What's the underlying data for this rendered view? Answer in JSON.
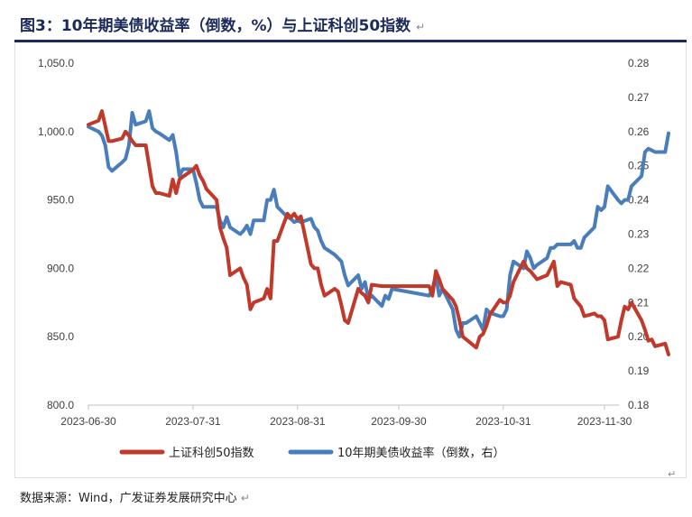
{
  "header": {
    "title": "图3：10年期美债收益率（倒数，%）与上证科创50指数",
    "return_mark": "↵"
  },
  "footer": {
    "source": "数据来源：Wind，广发证券发展研究中心",
    "return_mark": "↵"
  },
  "colors": {
    "red_series": "#c0392b",
    "blue_series": "#4a7ebb",
    "title": "#1b2a5a"
  },
  "chart_data": {
    "type": "line",
    "title": "图3：10年期美债收益率（倒数，%）与上证科创50指数",
    "grid": false,
    "legend_position": "bottom",
    "x_ticks": [
      "2023-06-30",
      "2023-07-31",
      "2023-08-31",
      "2023-09-30",
      "2023-10-31",
      "2023-11-30"
    ],
    "left_axis": {
      "ylim": [
        800,
        1050
      ],
      "ticks": [
        "800.0",
        "850.0",
        "900.0",
        "950.0",
        "1,000.0",
        "1,050.0"
      ]
    },
    "right_axis": {
      "ylim": [
        0.18,
        0.28
      ],
      "ticks": [
        "0.18",
        "0.19",
        "0.20",
        "0.21",
        "0.22",
        "0.23",
        "0.24",
        "0.25",
        "0.26",
        "0.27",
        "0.28"
      ]
    },
    "series": [
      {
        "name": "上证科创50指数",
        "axis": "left",
        "color": "#c0392b",
        "points": [
          [
            "2023-06-30",
            1005
          ],
          [
            "2023-07-03",
            1008
          ],
          [
            "2023-07-04",
            1015
          ],
          [
            "2023-07-05",
            1004
          ],
          [
            "2023-07-06",
            993
          ],
          [
            "2023-07-07",
            993
          ],
          [
            "2023-07-10",
            995
          ],
          [
            "2023-07-11",
            1000
          ],
          [
            "2023-07-12",
            997
          ],
          [
            "2023-07-13",
            993
          ],
          [
            "2023-07-14",
            990
          ],
          [
            "2023-07-17",
            990
          ],
          [
            "2023-07-18",
            975
          ],
          [
            "2023-07-19",
            960
          ],
          [
            "2023-07-20",
            955
          ],
          [
            "2023-07-21",
            955
          ],
          [
            "2023-07-24",
            953
          ],
          [
            "2023-07-25",
            965
          ],
          [
            "2023-07-26",
            955
          ],
          [
            "2023-07-27",
            965
          ],
          [
            "2023-07-28",
            967
          ],
          [
            "2023-07-31",
            972
          ],
          [
            "2023-08-01",
            975
          ],
          [
            "2023-08-02",
            968
          ],
          [
            "2023-08-03",
            964
          ],
          [
            "2023-08-04",
            958
          ],
          [
            "2023-08-07",
            950
          ],
          [
            "2023-08-08",
            930
          ],
          [
            "2023-08-09",
            922
          ],
          [
            "2023-08-10",
            915
          ],
          [
            "2023-08-11",
            895
          ],
          [
            "2023-08-14",
            900
          ],
          [
            "2023-08-15",
            893
          ],
          [
            "2023-08-16",
            888
          ],
          [
            "2023-08-17",
            870
          ],
          [
            "2023-08-18",
            875
          ],
          [
            "2023-08-21",
            878
          ],
          [
            "2023-08-22",
            885
          ],
          [
            "2023-08-23",
            878
          ],
          [
            "2023-08-24",
            920
          ],
          [
            "2023-08-25",
            920
          ],
          [
            "2023-08-28",
            940
          ],
          [
            "2023-08-29",
            937
          ],
          [
            "2023-08-30",
            940
          ],
          [
            "2023-08-31",
            936
          ],
          [
            "2023-09-01",
            938
          ],
          [
            "2023-09-04",
            903
          ],
          [
            "2023-09-05",
            900
          ],
          [
            "2023-09-06",
            900
          ],
          [
            "2023-09-07",
            888
          ],
          [
            "2023-09-08",
            880
          ],
          [
            "2023-09-11",
            885
          ],
          [
            "2023-09-12",
            883
          ],
          [
            "2023-09-13",
            873
          ],
          [
            "2023-09-14",
            862
          ],
          [
            "2023-09-15",
            860
          ],
          [
            "2023-09-18",
            885
          ],
          [
            "2023-09-19",
            882
          ],
          [
            "2023-09-20",
            880
          ],
          [
            "2023-09-21",
            875
          ],
          [
            "2023-09-22",
            888
          ],
          [
            "2023-09-25",
            887
          ],
          [
            "2023-09-26",
            887
          ],
          [
            "2023-09-27",
            887
          ],
          [
            "2023-09-28",
            887
          ],
          [
            "2023-10-09",
            887
          ],
          [
            "2023-10-10",
            880
          ],
          [
            "2023-10-11",
            898
          ],
          [
            "2023-10-12",
            892
          ],
          [
            "2023-10-13",
            885
          ],
          [
            "2023-10-16",
            877
          ],
          [
            "2023-10-17",
            872
          ],
          [
            "2023-10-18",
            862
          ],
          [
            "2023-10-19",
            850
          ],
          [
            "2023-10-20",
            848
          ],
          [
            "2023-10-23",
            842
          ],
          [
            "2023-10-24",
            850
          ],
          [
            "2023-10-25",
            852
          ],
          [
            "2023-10-26",
            858
          ],
          [
            "2023-10-27",
            866
          ],
          [
            "2023-10-30",
            877
          ],
          [
            "2023-10-31",
            875
          ],
          [
            "2023-11-01",
            875
          ],
          [
            "2023-11-02",
            880
          ],
          [
            "2023-11-03",
            890
          ],
          [
            "2023-11-06",
            905
          ],
          [
            "2023-11-07",
            900
          ],
          [
            "2023-11-08",
            898
          ],
          [
            "2023-11-09",
            895
          ],
          [
            "2023-11-10",
            892
          ],
          [
            "2023-11-13",
            895
          ],
          [
            "2023-11-14",
            900
          ],
          [
            "2023-11-15",
            905
          ],
          [
            "2023-11-16",
            887
          ],
          [
            "2023-11-17",
            890
          ],
          [
            "2023-11-20",
            888
          ],
          [
            "2023-11-21",
            878
          ],
          [
            "2023-11-22",
            875
          ],
          [
            "2023-11-23",
            872
          ],
          [
            "2023-11-24",
            865
          ],
          [
            "2023-11-27",
            867
          ],
          [
            "2023-11-28",
            865
          ],
          [
            "2023-11-29",
            865
          ],
          [
            "2023-11-30",
            862
          ],
          [
            "2023-12-01",
            848
          ],
          [
            "2023-12-04",
            850
          ],
          [
            "2023-12-05",
            862
          ],
          [
            "2023-12-06",
            872
          ],
          [
            "2023-12-07",
            870
          ],
          [
            "2023-12-08",
            875
          ],
          [
            "2023-12-11",
            862
          ],
          [
            "2023-12-12",
            855
          ],
          [
            "2023-12-13",
            847
          ],
          [
            "2023-12-14",
            848
          ],
          [
            "2023-12-15",
            843
          ],
          [
            "2023-12-18",
            845
          ],
          [
            "2023-12-19",
            837
          ]
        ]
      },
      {
        "name": "10年期美债收益率（倒数，右）",
        "axis": "right",
        "color": "#4a7ebb",
        "points": [
          [
            "2023-06-30",
            0.2614
          ],
          [
            "2023-07-03",
            0.26
          ],
          [
            "2023-07-04",
            0.2588
          ],
          [
            "2023-07-05",
            0.256
          ],
          [
            "2023-07-06",
            0.2496
          ],
          [
            "2023-07-07",
            0.2485
          ],
          [
            "2023-07-10",
            0.251
          ],
          [
            "2023-07-11",
            0.252
          ],
          [
            "2023-07-12",
            0.256
          ],
          [
            "2023-07-13",
            0.2655
          ],
          [
            "2023-07-14",
            0.262
          ],
          [
            "2023-07-17",
            0.263
          ],
          [
            "2023-07-18",
            0.266
          ],
          [
            "2023-07-19",
            0.261
          ],
          [
            "2023-07-20",
            0.26
          ],
          [
            "2023-07-21",
            0.2595
          ],
          [
            "2023-07-24",
            0.2575
          ],
          [
            "2023-07-25",
            0.259
          ],
          [
            "2023-07-26",
            0.254
          ],
          [
            "2023-07-27",
            0.247
          ],
          [
            "2023-07-28",
            0.249
          ],
          [
            "2023-07-31",
            0.249
          ],
          [
            "2023-08-01",
            0.245
          ],
          [
            "2023-08-02",
            0.24
          ],
          [
            "2023-08-03",
            0.238
          ],
          [
            "2023-08-04",
            0.238
          ],
          [
            "2023-08-07",
            0.238
          ],
          [
            "2023-08-08",
            0.234
          ],
          [
            "2023-08-09",
            0.232
          ],
          [
            "2023-08-10",
            0.235
          ],
          [
            "2023-08-11",
            0.232
          ],
          [
            "2023-08-14",
            0.23
          ],
          [
            "2023-08-15",
            0.231
          ],
          [
            "2023-08-16",
            0.2325
          ],
          [
            "2023-08-17",
            0.23
          ],
          [
            "2023-08-18",
            0.234
          ],
          [
            "2023-08-21",
            0.234
          ],
          [
            "2023-08-22",
            0.24
          ],
          [
            "2023-08-23",
            0.24
          ],
          [
            "2023-08-24",
            0.243
          ],
          [
            "2023-08-25",
            0.238
          ],
          [
            "2023-08-28",
            0.235
          ],
          [
            "2023-08-29",
            0.2345
          ],
          [
            "2023-08-30",
            0.2335
          ],
          [
            "2023-08-31",
            0.234
          ],
          [
            "2023-09-01",
            0.2335
          ],
          [
            "2023-09-04",
            0.2345
          ],
          [
            "2023-09-05",
            0.232
          ],
          [
            "2023-09-06",
            0.231
          ],
          [
            "2023-09-07",
            0.228
          ],
          [
            "2023-09-08",
            0.226
          ],
          [
            "2023-09-11",
            0.224
          ],
          [
            "2023-09-12",
            0.223
          ],
          [
            "2023-09-13",
            0.222
          ],
          [
            "2023-09-14",
            0.218
          ],
          [
            "2023-09-15",
            0.215
          ],
          [
            "2023-09-18",
            0.218
          ],
          [
            "2023-09-19",
            0.214
          ],
          [
            "2023-09-20",
            0.216
          ],
          [
            "2023-09-21",
            0.211
          ],
          [
            "2023-09-22",
            0.212
          ],
          [
            "2023-09-25",
            0.209
          ],
          [
            "2023-09-26",
            0.212
          ],
          [
            "2023-09-27",
            0.211
          ],
          [
            "2023-09-28",
            0.214
          ],
          [
            "2023-10-09",
            0.212
          ],
          [
            "2023-10-10",
            0.214
          ],
          [
            "2023-10-11",
            0.218
          ],
          [
            "2023-10-12",
            0.212
          ],
          [
            "2023-10-13",
            0.214
          ],
          [
            "2023-10-16",
            0.208
          ],
          [
            "2023-10-17",
            0.202
          ],
          [
            "2023-10-18",
            0.2
          ],
          [
            "2023-10-19",
            0.204
          ],
          [
            "2023-10-20",
            0.204
          ],
          [
            "2023-10-23",
            0.206
          ],
          [
            "2023-10-24",
            0.204
          ],
          [
            "2023-10-25",
            0.202
          ],
          [
            "2023-10-26",
            0.208
          ],
          [
            "2023-10-27",
            0.207
          ],
          [
            "2023-10-30",
            0.206
          ],
          [
            "2023-10-31",
            0.206
          ],
          [
            "2023-11-01",
            0.208
          ],
          [
            "2023-11-02",
            0.218
          ],
          [
            "2023-11-03",
            0.222
          ],
          [
            "2023-11-06",
            0.22
          ],
          [
            "2023-11-07",
            0.225
          ],
          [
            "2023-11-08",
            0.223
          ],
          [
            "2023-11-09",
            0.22
          ],
          [
            "2023-11-10",
            0.221
          ],
          [
            "2023-11-13",
            0.223
          ],
          [
            "2023-11-14",
            0.226
          ],
          [
            "2023-11-15",
            0.226
          ],
          [
            "2023-11-16",
            0.227
          ],
          [
            "2023-11-17",
            0.227
          ],
          [
            "2023-11-20",
            0.227
          ],
          [
            "2023-11-21",
            0.228
          ],
          [
            "2023-11-22",
            0.226
          ],
          [
            "2023-11-23",
            0.226
          ],
          [
            "2023-11-24",
            0.229
          ],
          [
            "2023-11-27",
            0.232
          ],
          [
            "2023-11-28",
            0.238
          ],
          [
            "2023-11-29",
            0.237
          ],
          [
            "2023-11-30",
            0.238
          ],
          [
            "2023-12-01",
            0.244
          ],
          [
            "2023-12-04",
            0.24
          ],
          [
            "2023-12-05",
            0.239
          ],
          [
            "2023-12-06",
            0.24
          ],
          [
            "2023-12-07",
            0.24
          ],
          [
            "2023-12-08",
            0.244
          ],
          [
            "2023-12-11",
            0.247
          ],
          [
            "2023-12-12",
            0.254
          ],
          [
            "2023-12-13",
            0.255
          ],
          [
            "2023-12-14",
            0.2545
          ],
          [
            "2023-12-15",
            0.254
          ],
          [
            "2023-12-18",
            0.254
          ],
          [
            "2023-12-19",
            0.2595
          ]
        ]
      }
    ]
  }
}
